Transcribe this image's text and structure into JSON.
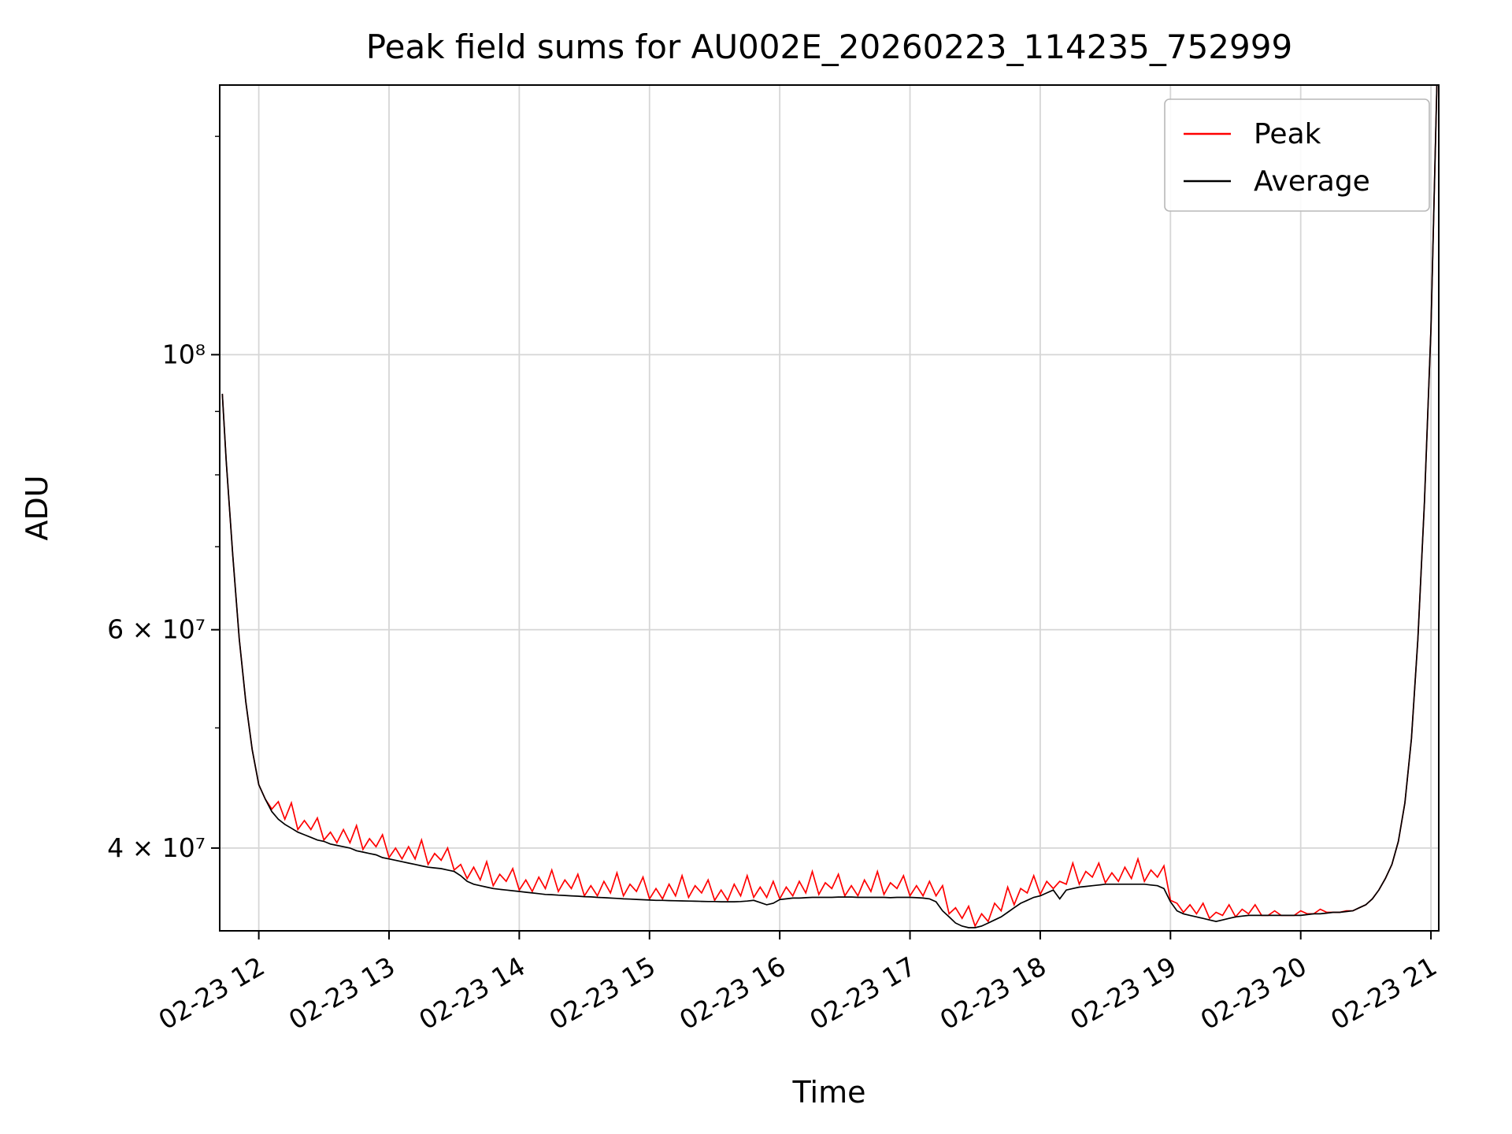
{
  "chart_data": {
    "type": "line",
    "title": "Peak field sums for AU002E_20260223_114235_752999",
    "xlabel": "Time",
    "ylabel": "ADU",
    "yscale": "log",
    "grid": true,
    "xlim": [
      11.7,
      21.06
    ],
    "ylim": [
      34300000.0,
      165000000.0
    ],
    "x_ticks": [
      12,
      13,
      14,
      15,
      16,
      17,
      18,
      19,
      20,
      21
    ],
    "x_tick_labels": [
      "02-23 12",
      "02-23 13",
      "02-23 14",
      "02-23 15",
      "02-23 16",
      "02-23 17",
      "02-23 18",
      "02-23 19",
      "02-23 20",
      "02-23 21"
    ],
    "y_ticks": [
      40000000.0,
      60000000.0,
      100000000.0
    ],
    "y_tick_labels": [
      "4 × 10⁷",
      "6 × 10⁷",
      "10⁸"
    ],
    "y_minor_ticks": [
      50000000.0,
      70000000.0,
      80000000.0,
      90000000.0,
      150000000.0
    ],
    "legend": {
      "position": "upper right"
    },
    "x": [
      11.72,
      11.75,
      11.8,
      11.85,
      11.9,
      11.95,
      12,
      12.05,
      12.1,
      12.15,
      12.2,
      12.25,
      12.3,
      12.35,
      12.4,
      12.45,
      12.5,
      12.55,
      12.6,
      12.65,
      12.7,
      12.75,
      12.8,
      12.85,
      12.9,
      12.95,
      13,
      13.05,
      13.1,
      13.15,
      13.2,
      13.25,
      13.3,
      13.35,
      13.4,
      13.45,
      13.5,
      13.55,
      13.6,
      13.65,
      13.7,
      13.75,
      13.8,
      13.85,
      13.9,
      13.95,
      14,
      14.05,
      14.1,
      14.15,
      14.2,
      14.25,
      14.3,
      14.35,
      14.4,
      14.45,
      14.5,
      14.55,
      14.6,
      14.65,
      14.7,
      14.75,
      14.8,
      14.85,
      14.9,
      14.95,
      15,
      15.05,
      15.1,
      15.15,
      15.2,
      15.25,
      15.3,
      15.35,
      15.4,
      15.45,
      15.5,
      15.55,
      15.6,
      15.65,
      15.7,
      15.75,
      15.8,
      15.85,
      15.9,
      15.95,
      16,
      16.05,
      16.1,
      16.15,
      16.2,
      16.25,
      16.3,
      16.35,
      16.4,
      16.45,
      16.5,
      16.55,
      16.6,
      16.65,
      16.7,
      16.75,
      16.8,
      16.85,
      16.9,
      16.95,
      17,
      17.05,
      17.1,
      17.15,
      17.2,
      17.25,
      17.3,
      17.35,
      17.4,
      17.45,
      17.5,
      17.55,
      17.6,
      17.65,
      17.7,
      17.75,
      17.8,
      17.85,
      17.9,
      17.95,
      18,
      18.05,
      18.1,
      18.15,
      18.2,
      18.25,
      18.3,
      18.35,
      18.4,
      18.45,
      18.5,
      18.55,
      18.6,
      18.65,
      18.7,
      18.75,
      18.8,
      18.85,
      18.9,
      18.95,
      19,
      19.05,
      19.1,
      19.15,
      19.2,
      19.25,
      19.3,
      19.35,
      19.4,
      19.45,
      19.5,
      19.55,
      19.6,
      19.65,
      19.7,
      19.75,
      19.8,
      19.85,
      19.9,
      19.95,
      20,
      20.05,
      20.1,
      20.15,
      20.2,
      20.25,
      20.3,
      20.35,
      20.4,
      20.45,
      20.5,
      20.55,
      20.6,
      20.65,
      20.7,
      20.75,
      20.8,
      20.85,
      20.9,
      20.95,
      21,
      21.05
    ],
    "series": [
      {
        "name": "Peak",
        "color": "#ff0000",
        "values": [
          93000000.0,
          82000000.0,
          69000000.0,
          59000000.0,
          52500000.0,
          48000000.0,
          45000000.0,
          43800000.0,
          43000000.0,
          43600000.0,
          42200000.0,
          43500000.0,
          41400000.0,
          42100000.0,
          41400000.0,
          42300000.0,
          40600000.0,
          41200000.0,
          40400000.0,
          41400000.0,
          40400000.0,
          41700000.0,
          39900000.0,
          40700000.0,
          40100000.0,
          41000000.0,
          39300000.0,
          40000000.0,
          39200000.0,
          40100000.0,
          39200000.0,
          40600000.0,
          38800000.0,
          39600000.0,
          39100000.0,
          40000000.0,
          38400000.0,
          38800000.0,
          37800000.0,
          38600000.0,
          37700000.0,
          39000000.0,
          37300000.0,
          38100000.0,
          37600000.0,
          38500000.0,
          37000000.0,
          37700000.0,
          36900000.0,
          37900000.0,
          37100000.0,
          38400000.0,
          36900000.0,
          37700000.0,
          37100000.0,
          38100000.0,
          36600000.0,
          37300000.0,
          36600000.0,
          37600000.0,
          36800000.0,
          38200000.0,
          36600000.0,
          37400000.0,
          36900000.0,
          37900000.0,
          36400000.0,
          37100000.0,
          36400000.0,
          37400000.0,
          36600000.0,
          38000000.0,
          36500000.0,
          37300000.0,
          36800000.0,
          37700000.0,
          36300000.0,
          37000000.0,
          36300000.0,
          37400000.0,
          36600000.0,
          38000000.0,
          36500000.0,
          37200000.0,
          36500000.0,
          37600000.0,
          36400000.0,
          37200000.0,
          36600000.0,
          37600000.0,
          36800000.0,
          38300000.0,
          36700000.0,
          37500000.0,
          37100000.0,
          38100000.0,
          36600000.0,
          37300000.0,
          36600000.0,
          37700000.0,
          36900000.0,
          38300000.0,
          36700000.0,
          37500000.0,
          37100000.0,
          38000000.0,
          36600000.0,
          37300000.0,
          36600000.0,
          37600000.0,
          36600000.0,
          37300000.0,
          35400000.0,
          35800000.0,
          35100000.0,
          35900000.0,
          34600000.0,
          35400000.0,
          34900000.0,
          36100000.0,
          35600000.0,
          37200000.0,
          36000000.0,
          37100000.0,
          36800000.0,
          38000000.0,
          36700000.0,
          37600000.0,
          37100000.0,
          37600000.0,
          37400000.0,
          38900000.0,
          37400000.0,
          38300000.0,
          37900000.0,
          38900000.0,
          37500000.0,
          38200000.0,
          37600000.0,
          38600000.0,
          37800000.0,
          39200000.0,
          37600000.0,
          38400000.0,
          37900000.0,
          38700000.0,
          36300000.0,
          36100000.0,
          35500000.0,
          36000000.0,
          35400000.0,
          36100000.0,
          35100000.0,
          35500000.0,
          35300000.0,
          36000000.0,
          35200000.0,
          35700000.0,
          35400000.0,
          36000000.0,
          35300000.0,
          35300000.0,
          35600000.0,
          35300000.0,
          35300000.0,
          35300000.0,
          35600000.0,
          35400000.0,
          35400000.0,
          35700000.0,
          35500000.0,
          35500000.0,
          35500000.0,
          35600000.0,
          35600000.0,
          35800000.0,
          36000000.0,
          36400000.0,
          37000000.0,
          37800000.0,
          38800000.0,
          40500000.0,
          43500000.0,
          49000000.0,
          59000000.0,
          76000000.0,
          105000000.0,
          172000000.0
        ]
      },
      {
        "name": "Average",
        "color": "#000000",
        "values": [
          93000000.0,
          82000000.0,
          69000000.0,
          59000000.0,
          52500000.0,
          48000000.0,
          45000000.0,
          43800000.0,
          42800000.0,
          42200000.0,
          41800000.0,
          41500000.0,
          41200000.0,
          41000000.0,
          40800000.0,
          40600000.0,
          40500000.0,
          40300000.0,
          40200000.0,
          40100000.0,
          40000000.0,
          39800000.0,
          39700000.0,
          39600000.0,
          39500000.0,
          39300000.0,
          39200000.0,
          39100000.0,
          39000000.0,
          38900000.0,
          38800000.0,
          38700000.0,
          38600000.0,
          38550000.0,
          38500000.0,
          38400000.0,
          38300000.0,
          38000000.0,
          37600000.0,
          37400000.0,
          37300000.0,
          37200000.0,
          37100000.0,
          37050000.0,
          37000000.0,
          36950000.0,
          36900000.0,
          36850000.0,
          36800000.0,
          36750000.0,
          36700000.0,
          36680000.0,
          36650000.0,
          36630000.0,
          36600000.0,
          36580000.0,
          36550000.0,
          36530000.0,
          36500000.0,
          36480000.0,
          36450000.0,
          36430000.0,
          36400000.0,
          36380000.0,
          36360000.0,
          36340000.0,
          36320000.0,
          36300000.0,
          36300000.0,
          36280000.0,
          36270000.0,
          36260000.0,
          36250000.0,
          36240000.0,
          36230000.0,
          36220000.0,
          36220000.0,
          36200000.0,
          36200000.0,
          36200000.0,
          36220000.0,
          36250000.0,
          36300000.0,
          36150000.0,
          36000000.0,
          36100000.0,
          36350000.0,
          36400000.0,
          36450000.0,
          36450000.0,
          36480000.0,
          36500000.0,
          36500000.0,
          36500000.0,
          36500000.0,
          36520000.0,
          36520000.0,
          36520000.0,
          36500000.0,
          36500000.0,
          36500000.0,
          36500000.0,
          36500000.0,
          36480000.0,
          36500000.0,
          36500000.0,
          36500000.0,
          36480000.0,
          36450000.0,
          36400000.0,
          36200000.0,
          35600000.0,
          35200000.0,
          34800000.0,
          34600000.0,
          34500000.0,
          34500000.0,
          34600000.0,
          34800000.0,
          35000000.0,
          35200000.0,
          35500000.0,
          35800000.0,
          36100000.0,
          36300000.0,
          36500000.0,
          36600000.0,
          36800000.0,
          37000000.0,
          36400000.0,
          37000000.0,
          37100000.0,
          37200000.0,
          37250000.0,
          37300000.0,
          37350000.0,
          37400000.0,
          37400000.0,
          37400000.0,
          37400000.0,
          37400000.0,
          37400000.0,
          37400000.0,
          37350000.0,
          37300000.0,
          37100000.0,
          36200000.0,
          35600000.0,
          35400000.0,
          35300000.0,
          35200000.0,
          35100000.0,
          35000000.0,
          34900000.0,
          35000000.0,
          35100000.0,
          35200000.0,
          35250000.0,
          35300000.0,
          35300000.0,
          35300000.0,
          35300000.0,
          35300000.0,
          35300000.0,
          35300000.0,
          35300000.0,
          35300000.0,
          35350000.0,
          35400000.0,
          35400000.0,
          35450000.0,
          35500000.0,
          35500000.0,
          35550000.0,
          35600000.0,
          35800000.0,
          36000000.0,
          36400000.0,
          37000000.0,
          37800000.0,
          38800000.0,
          40500000.0,
          43500000.0,
          49000000.0,
          59000000.0,
          76000000.0,
          105000000.0,
          172000000.0
        ]
      }
    ]
  }
}
